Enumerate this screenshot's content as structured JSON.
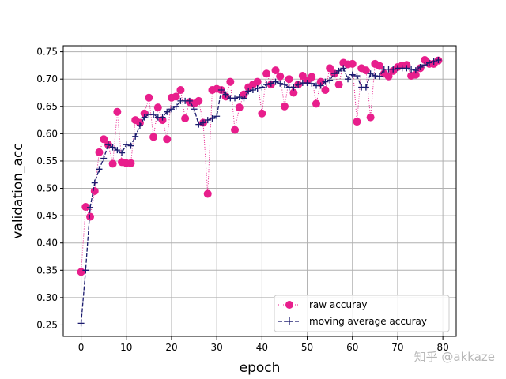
{
  "chart_data": {
    "type": "line",
    "xlabel": "epoch",
    "ylabel": "validation_acc",
    "xlim": [
      -3.95,
      82.95
    ],
    "ylim": [
      0.229,
      0.761
    ],
    "xticks": [
      0,
      10,
      20,
      30,
      40,
      50,
      60,
      70,
      80
    ],
    "yticks": [
      0.25,
      0.3,
      0.35,
      0.4,
      0.45,
      0.5,
      0.55,
      0.6,
      0.65,
      0.7,
      0.75
    ],
    "grid": true,
    "legend_placement": "lower-right",
    "series": [
      {
        "name": "raw accuray",
        "color": "#e81e8c",
        "style": "dotted line with circle markers",
        "values": [
          0.347,
          0.466,
          0.448,
          0.495,
          0.566,
          0.59,
          0.58,
          0.545,
          0.64,
          0.548,
          0.546,
          0.546,
          0.625,
          0.62,
          0.637,
          0.666,
          0.594,
          0.648,
          0.625,
          0.59,
          0.666,
          0.668,
          0.68,
          0.628,
          0.658,
          0.655,
          0.66,
          0.62,
          0.49,
          0.68,
          0.682,
          0.68,
          0.668,
          0.695,
          0.607,
          0.648,
          0.672,
          0.685,
          0.69,
          0.695,
          0.637,
          0.71,
          0.69,
          0.716,
          0.705,
          0.65,
          0.7,
          0.675,
          0.69,
          0.706,
          0.697,
          0.704,
          0.655,
          0.695,
          0.68,
          0.72,
          0.71,
          0.69,
          0.73,
          0.727,
          0.728,
          0.622,
          0.72,
          0.716,
          0.63,
          0.728,
          0.724,
          0.71,
          0.705,
          0.715,
          0.722,
          0.725,
          0.726,
          0.706,
          0.708,
          0.72,
          0.735,
          0.728,
          0.728,
          0.734
        ]
      },
      {
        "name": "moving average accuray",
        "color": "#1a1a6e",
        "style": "dashed line with plus markers",
        "values": [
          0.253,
          0.35,
          0.465,
          0.51,
          0.535,
          0.555,
          0.58,
          0.575,
          0.57,
          0.565,
          0.58,
          0.578,
          0.595,
          0.615,
          0.63,
          0.635,
          0.635,
          0.63,
          0.63,
          0.64,
          0.645,
          0.65,
          0.66,
          0.66,
          0.66,
          0.645,
          0.617,
          0.62,
          0.625,
          0.628,
          0.632,
          0.68,
          0.672,
          0.665,
          0.665,
          0.667,
          0.665,
          0.678,
          0.68,
          0.683,
          0.685,
          0.69,
          0.692,
          0.695,
          0.692,
          0.69,
          0.685,
          0.685,
          0.69,
          0.693,
          0.693,
          0.692,
          0.688,
          0.688,
          0.695,
          0.698,
          0.71,
          0.715,
          0.72,
          0.7,
          0.708,
          0.706,
          0.685,
          0.685,
          0.71,
          0.706,
          0.705,
          0.718,
          0.718,
          0.718,
          0.72,
          0.72,
          0.72,
          0.718,
          0.716,
          0.722,
          0.726,
          0.73,
          0.732,
          0.735
        ]
      }
    ]
  },
  "watermark": "知乎 @akkaze"
}
